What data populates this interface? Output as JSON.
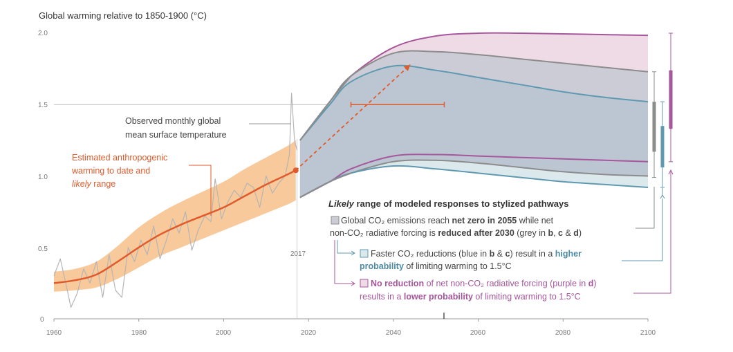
{
  "chart_data": {
    "type": "line",
    "title": "Global warming relative to 1850-1900 (°C)",
    "xlim": [
      1960,
      2100
    ],
    "ylim": [
      0,
      2.0
    ],
    "x_ticks": [
      "1960",
      "1980",
      "2000",
      "2020",
      "2040",
      "2060",
      "2080",
      "2100"
    ],
    "y_ticks": [
      "0",
      "0.5",
      "1.0",
      "1.5",
      "2.0"
    ],
    "x_tick_values": [
      1960,
      1980,
      2000,
      2020,
      2040,
      2060,
      2080,
      2100
    ],
    "y_tick_values": [
      0,
      0.5,
      1.0,
      1.5,
      2.0
    ],
    "grid": "horizontal line at 1.5",
    "observed_label_lines": [
      "Observed monthly global",
      "mean surface temperature"
    ],
    "anthro_label_lines": [
      "Estimated anthropogenic",
      "warming to date and"
    ],
    "anthro_label_likely": "likely",
    "anthro_label_range": " range",
    "year_2017_label": "2017",
    "anthropogenic_central": {
      "x": [
        1960,
        1965,
        1970,
        1975,
        1980,
        1985,
        1990,
        1995,
        2000,
        2005,
        2010,
        2015,
        2017
      ],
      "y": [
        0.25,
        0.27,
        0.31,
        0.4,
        0.5,
        0.59,
        0.66,
        0.72,
        0.78,
        0.86,
        0.94,
        1.01,
        1.04
      ]
    },
    "anthropogenic_likely_range": {
      "x": [
        1960,
        1965,
        1970,
        1975,
        1980,
        1985,
        1990,
        1995,
        2000,
        2005,
        2010,
        2015,
        2017
      ],
      "lower": [
        0.19,
        0.2,
        0.22,
        0.28,
        0.36,
        0.44,
        0.5,
        0.56,
        0.62,
        0.68,
        0.74,
        0.8,
        0.83
      ],
      "upper": [
        0.33,
        0.35,
        0.4,
        0.51,
        0.64,
        0.74,
        0.82,
        0.89,
        0.96,
        1.05,
        1.13,
        1.21,
        1.25
      ]
    },
    "observed_monthly": {
      "x": [
        1960,
        1961.5,
        1963,
        1964,
        1965.5,
        1967,
        1968.5,
        1970,
        1971.5,
        1973,
        1974.5,
        1976,
        1977.5,
        1979,
        1980.5,
        1982,
        1983.5,
        1985,
        1986.5,
        1988,
        1989.5,
        1991,
        1992.5,
        1994,
        1995.5,
        1997,
        1998,
        1999.5,
        2001,
        2002.5,
        2004,
        2005.5,
        2007,
        2008.5,
        2010,
        2011.5,
        2013,
        2014.5,
        2015.5,
        2016,
        2016.7,
        2017.3
      ],
      "y": [
        0.3,
        0.42,
        0.22,
        0.08,
        0.18,
        0.35,
        0.25,
        0.4,
        0.15,
        0.45,
        0.2,
        0.15,
        0.5,
        0.4,
        0.55,
        0.45,
        0.65,
        0.42,
        0.55,
        0.7,
        0.6,
        0.75,
        0.48,
        0.62,
        0.72,
        0.68,
        0.98,
        0.7,
        0.82,
        0.9,
        0.85,
        0.95,
        0.92,
        0.78,
        1.0,
        0.88,
        0.95,
        1.0,
        1.15,
        1.58,
        1.25,
        1.18
      ]
    },
    "series": [
      {
        "name": "No reduction of net non-CO2 radiative forcing (purple)",
        "color": "#a6579b",
        "x": [
          2018,
          2025,
          2030,
          2040,
          2050,
          2060,
          2070,
          2080,
          2090,
          2100
        ],
        "upper": [
          1.25,
          1.52,
          1.7,
          1.9,
          1.98,
          2.0,
          2.0,
          1.995,
          1.99,
          1.985
        ],
        "lower": [
          0.85,
          0.96,
          1.05,
          1.14,
          1.15,
          1.14,
          1.13,
          1.12,
          1.11,
          1.1
        ]
      },
      {
        "name": "Global CO2 emissions reach net zero in 2055 (grey)",
        "color": "#8c8c8c",
        "x": [
          2018,
          2025,
          2030,
          2040,
          2050,
          2060,
          2070,
          2080,
          2090,
          2100
        ],
        "upper": [
          1.25,
          1.52,
          1.7,
          1.86,
          1.87,
          1.85,
          1.82,
          1.79,
          1.76,
          1.73
        ],
        "lower": [
          0.85,
          0.96,
          1.02,
          1.1,
          1.11,
          1.09,
          1.06,
          1.03,
          1.01,
          1.0
        ]
      },
      {
        "name": "Faster CO2 reductions (blue)",
        "color": "#5f99b0",
        "x": [
          2018,
          2025,
          2030,
          2040,
          2050,
          2060,
          2070,
          2080,
          2090,
          2100
        ],
        "upper": [
          1.25,
          1.5,
          1.66,
          1.77,
          1.74,
          1.69,
          1.64,
          1.59,
          1.55,
          1.52
        ],
        "lower": [
          0.85,
          0.96,
          1.02,
          1.07,
          1.05,
          1.02,
          0.99,
          0.96,
          0.94,
          0.92
        ]
      }
    ],
    "arrow": {
      "from": [
        2017,
        1.04
      ],
      "to": [
        2044,
        1.78
      ],
      "color": "#e05a2b"
    },
    "range_marker_1_5": {
      "x": [
        2030,
        2052
      ],
      "y": 1.5,
      "color": "#e05a2b"
    },
    "end_bars": [
      {
        "series": "grey",
        "color": "#8c8c8c",
        "whisker": [
          0.99,
          1.73
        ],
        "likely": [
          1.17,
          1.52
        ]
      },
      {
        "series": "blue",
        "color": "#5f99b0",
        "whisker": [
          0.92,
          1.52
        ],
        "likely": [
          1.06,
          1.35
        ]
      },
      {
        "series": "purple",
        "color": "#a6579b",
        "whisker": [
          1.1,
          2.0
        ],
        "likely": [
          1.33,
          1.74
        ]
      }
    ],
    "legend": {
      "heading_italic": "Likely",
      "heading_rest": " range of modeled responses to stylized pathways",
      "grey": {
        "line1_a": "Global CO₂ emissions reach ",
        "line1_b": "net zero in 2055",
        "line1_c": " while net",
        "line2_a": "non-CO₂ radiative forcing is ",
        "line2_b": "reduced after 2030",
        "line2_c": " (grey in ",
        "line2_d": "b",
        "line2_e": ", ",
        "line2_f": "c",
        "line2_g": " & ",
        "line2_h": "d",
        "line2_i": ")"
      },
      "blue": {
        "line1_a": "Faster CO₂ reductions (blue in ",
        "line1_b": "b",
        "line1_c": " & ",
        "line1_d": "c",
        "line1_e": ") result in a ",
        "line1_f": "higher",
        "line2_a": "probability",
        "line2_b": " of limiting warming to 1.5°C"
      },
      "purple": {
        "line1_a": "No reduction",
        "line1_b": " of net non-CO₂ radiative forcing (purple in ",
        "line1_c": "d",
        "line1_d": ")",
        "line2_a": "results in a ",
        "line2_b": "lower probability",
        "line2_c": " of limiting warming to 1.5°C"
      }
    }
  },
  "colors": {
    "orange": "#e05a2b",
    "orange_band": "#f8c99a",
    "observed": "#b5b5b5",
    "grey_band": "#cbccd6",
    "blue_band": "#dbe8ec",
    "purple_band": "#eedbe6"
  }
}
